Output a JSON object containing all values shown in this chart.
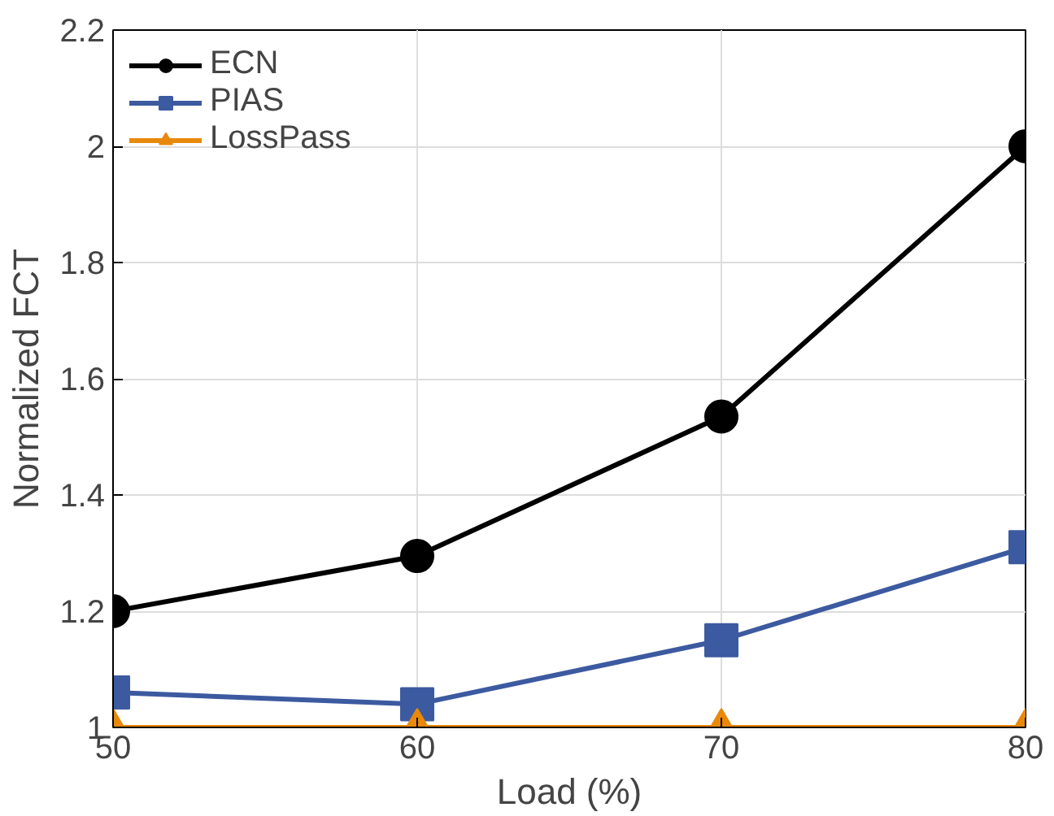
{
  "chart_data": {
    "type": "line",
    "xlabel": "Load (%)",
    "ylabel": "Normalized FCT",
    "x": [
      50,
      60,
      70,
      80
    ],
    "xlim": [
      50,
      80
    ],
    "xticks": [
      50,
      60,
      70,
      80
    ],
    "ylim": [
      1,
      2.2
    ],
    "yticks": [
      1,
      1.2,
      1.4,
      1.6,
      1.8,
      2,
      2.2
    ],
    "grid": true,
    "legend": "top left",
    "line_style": "solid",
    "series": [
      {
        "name": "ECN",
        "color": "#000000",
        "marker": "circle",
        "values": [
          1.2,
          1.295,
          1.535,
          2.0
        ]
      },
      {
        "name": "PIAS",
        "color": "#3c5aa0",
        "marker": "square",
        "values": [
          1.06,
          1.04,
          1.15,
          1.31
        ]
      },
      {
        "name": "LossPass",
        "color": "#e8890c",
        "marker": "triangle",
        "values": [
          1.0,
          1.0,
          1.0,
          1.0
        ]
      }
    ]
  }
}
